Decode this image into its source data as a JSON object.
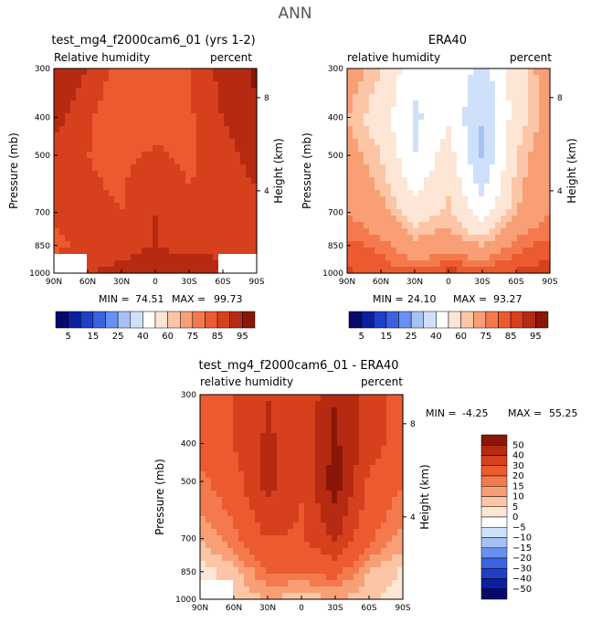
{
  "page_title": "ANN",
  "colors": {
    "abs_levels": [
      "#08086b",
      "#0b1fa0",
      "#1f3fc8",
      "#3b63e0",
      "#6a8ff0",
      "#a6c2f5",
      "#cfe0fa",
      "#ffffff",
      "#fde6d6",
      "#fbc5a6",
      "#f89f76",
      "#f47a4e",
      "#ec5a30",
      "#d6401d",
      "#b62a12",
      "#8a1608"
    ],
    "diff_levels": [
      "#08086b",
      "#0b1fa0",
      "#1f3fc8",
      "#3b63e0",
      "#6a8ff0",
      "#a6c2f5",
      "#cfe0fa",
      "#ffffff",
      "#fde6d6",
      "#fbc5a6",
      "#f89f76",
      "#f47a4e",
      "#ec5a30",
      "#d6401d",
      "#b62a12",
      "#8a1608"
    ],
    "missing": "#ffffff"
  },
  "common": {
    "ylabel": "Pressure (mb)",
    "y2label": "Height (km)",
    "x_ticks": [
      "90N",
      "60N",
      "30N",
      "0",
      "30S",
      "60S",
      "90S"
    ],
    "p_ticks": [
      "300",
      "400",
      "500",
      "700",
      "850",
      "1000"
    ],
    "h_ticks": [
      "8",
      "4"
    ],
    "min_label": "MIN =",
    "max_label": "MAX ="
  },
  "abs_colorbar_labels": [
    "5",
    "15",
    "25",
    "40",
    "60",
    "75",
    "85",
    "95"
  ],
  "diff_colorbar_labels": [
    "50",
    "40",
    "30",
    "20",
    "15",
    "10",
    "5",
    "0",
    "−5",
    "−10",
    "−15",
    "−20",
    "−30",
    "−40",
    "−50"
  ],
  "chart_data": [
    {
      "type": "heatmap",
      "title": "test_mg4_f2000cam6_01 (yrs 1-2)",
      "left_string": "Relative humidity",
      "right_string": "percent",
      "min": "74.51",
      "max": "99.73",
      "x": [
        "90N",
        "60N",
        "30N",
        "0",
        "30S",
        "60S",
        "90S"
      ],
      "y": [
        "300",
        "400",
        "500",
        "700",
        "850",
        "1000"
      ],
      "z": [
        [
          95,
          90,
          82,
          80,
          85,
          92,
          96
        ],
        [
          92,
          86,
          80,
          82,
          84,
          90,
          94
        ],
        [
          88,
          85,
          84,
          86,
          84,
          88,
          92
        ],
        [
          86,
          86,
          85,
          90,
          86,
          86,
          88
        ],
        [
          84,
          86,
          88,
          90,
          88,
          88,
          86
        ],
        [
          88,
          90,
          92,
          94,
          95,
          92,
          90
        ]
      ]
    },
    {
      "type": "heatmap",
      "title": "ERA40",
      "left_string": "relative humidity",
      "right_string": "percent",
      "min": "24.10",
      "max": "93.27",
      "x": [
        "90N",
        "60N",
        "30N",
        "0",
        "30S",
        "60S",
        "90S"
      ],
      "y": [
        "300",
        "400",
        "500",
        "700",
        "850",
        "1000"
      ],
      "z": [
        [
          70,
          60,
          42,
          50,
          35,
          55,
          72
        ],
        [
          65,
          55,
          38,
          48,
          30,
          55,
          70
        ],
        [
          70,
          60,
          40,
          55,
          28,
          60,
          72
        ],
        [
          75,
          68,
          55,
          62,
          45,
          65,
          75
        ],
        [
          82,
          78,
          68,
          70,
          65,
          78,
          82
        ],
        [
          86,
          84,
          82,
          88,
          85,
          86,
          88
        ]
      ]
    },
    {
      "type": "heatmap",
      "title": "test_mg4_f2000cam6_01 - ERA40",
      "left_string": "relative humidity",
      "right_string": "percent",
      "min": "-4.25",
      "max": "55.25",
      "x": [
        "90N",
        "60N",
        "30N",
        "0",
        "30S",
        "60S",
        "90S"
      ],
      "y": [
        "300",
        "400",
        "500",
        "700",
        "850",
        "1000"
      ],
      "z": [
        [
          25,
          30,
          40,
          30,
          50,
          37,
          24
        ],
        [
          24,
          30,
          42,
          34,
          52,
          35,
          24
        ],
        [
          18,
          25,
          44,
          31,
          56,
          28,
          20
        ],
        [
          11,
          18,
          30,
          28,
          41,
          21,
          13
        ],
        [
          2,
          8,
          20,
          20,
          23,
          10,
          4
        ],
        [
          2,
          6,
          10,
          6,
          10,
          6,
          2
        ]
      ]
    }
  ]
}
